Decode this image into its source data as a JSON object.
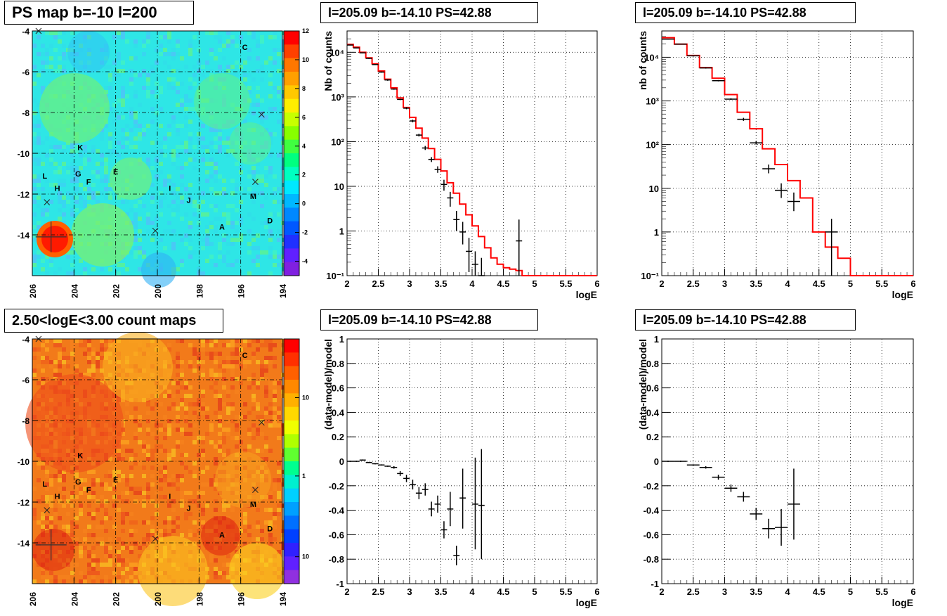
{
  "panels": {
    "ps_map": {
      "title": "PS map b=-10 l=200"
    },
    "count_map": {
      "title": "2.50<logE<3.00 count maps"
    },
    "spec_left": {
      "title": "l=205.09 b=-14.10 PS=42.88"
    },
    "spec_right": {
      "title": "l=205.09 b=-14.10 PS=42.88"
    },
    "res_left": {
      "title": "l=205.09 b=-14.10 PS=42.88"
    },
    "res_right": {
      "title": "l=205.09 b=-14.10 PS=42.88"
    }
  },
  "colors": {
    "data": "#000000",
    "model": "#ff0000",
    "grid": "#000000"
  },
  "chart_data": [
    {
      "id": "ps_map",
      "type": "heatmap",
      "title": "PS map b=-10 l=200",
      "xlabel": "",
      "ylabel": "",
      "xlim": [
        206,
        194
      ],
      "ylim": [
        -16,
        -4
      ],
      "x_ticks": [
        "206",
        "204",
        "202",
        "200",
        "198",
        "196",
        "194"
      ],
      "y_ticks": [
        "-4",
        "-6",
        "-8",
        "-10",
        "-12",
        "-14"
      ],
      "zlim": [
        -5,
        12
      ],
      "z_ticks": [
        "12",
        "10",
        "8",
        "6",
        "4",
        "2",
        "0",
        "-2",
        "-4"
      ],
      "grid": true,
      "sources": [
        {
          "label": "C",
          "l": 195.8,
          "b": -4.8
        },
        {
          "label": "K",
          "l": 203.7,
          "b": -9.7
        },
        {
          "label": "L",
          "l": 205.4,
          "b": -11.1
        },
        {
          "label": "G",
          "l": 203.8,
          "b": -11.0
        },
        {
          "label": "E",
          "l": 202.0,
          "b": -10.9
        },
        {
          "label": "H",
          "l": 204.8,
          "b": -11.7
        },
        {
          "label": "F",
          "l": 203.3,
          "b": -11.4
        },
        {
          "label": "I",
          "l": 199.4,
          "b": -11.7
        },
        {
          "label": "J",
          "l": 198.5,
          "b": -12.3
        },
        {
          "label": "M",
          "l": 195.4,
          "b": -12.1
        },
        {
          "label": "D",
          "l": 194.6,
          "b": -13.3
        },
        {
          "label": "A",
          "l": 196.9,
          "b": -13.6
        }
      ]
    },
    {
      "id": "count_map",
      "type": "heatmap",
      "title": "2.50<logE<3.00 count maps",
      "xlabel": "",
      "ylabel": "",
      "xlim": [
        206,
        194
      ],
      "ylim": [
        -16,
        -4
      ],
      "x_ticks": [
        "206",
        "204",
        "202",
        "200",
        "198",
        "196",
        "194"
      ],
      "y_ticks": [
        "-4",
        "-6",
        "-8",
        "-10",
        "-12",
        "-14"
      ],
      "z_scale": "log",
      "z_ticks": [
        "10",
        "1",
        "10⁻¹"
      ],
      "grid": true
    },
    {
      "id": "spec_left",
      "type": "line",
      "title": "l=205.09 b=-14.10 PS=42.88",
      "xlabel": "logE",
      "ylabel": "Nb of counts",
      "xlim": [
        2,
        6
      ],
      "ylim": [
        0.1,
        30000
      ],
      "y_scale": "log",
      "x_ticks": [
        "2",
        "2.5",
        "3",
        "3.5",
        "4",
        "4.5",
        "5",
        "5.5",
        "6"
      ],
      "y_ticks": [
        {
          "v": 0.1,
          "t": "10⁻¹"
        },
        {
          "v": 1,
          "t": "1"
        },
        {
          "v": 10,
          "t": "10"
        },
        {
          "v": 100,
          "t": "10²"
        },
        {
          "v": 1000,
          "t": "10³"
        },
        {
          "v": 10000,
          "t": "10⁴"
        }
      ],
      "grid": true,
      "series": [
        {
          "kind": "step",
          "edges": [
            2,
            2.1,
            2.2,
            2.3,
            2.4,
            2.5,
            2.6,
            2.7,
            2.8,
            2.9,
            3.0,
            3.1,
            3.2,
            3.3,
            3.4,
            3.5,
            3.6,
            3.7,
            3.8,
            3.9,
            4.0,
            4.1,
            4.2,
            4.3,
            4.4,
            4.5,
            4.6,
            4.7,
            4.8,
            4.9,
            5.0,
            5.1,
            5.2,
            5.3,
            5.4,
            5.5,
            5.6,
            5.7,
            5.8,
            5.9,
            6.0
          ],
          "values": [
            15000,
            13000,
            10000,
            7500,
            5500,
            3800,
            2500,
            1600,
            950,
            580,
            350,
            200,
            120,
            70,
            40,
            22,
            12,
            7,
            4,
            2.3,
            1.3,
            0.75,
            0.42,
            0.25,
            0.18,
            0.15,
            0.14,
            0.13,
            0.1,
            0.1,
            0.1,
            0.1,
            0.1,
            0.1,
            0.1,
            0.1,
            0.1,
            0.1,
            0.1,
            0.1
          ]
        },
        {
          "kind": "points",
          "x": [
            2.05,
            2.15,
            2.25,
            2.35,
            2.45,
            2.55,
            2.65,
            2.75,
            2.85,
            2.95,
            3.05,
            3.15,
            3.25,
            3.35,
            3.45,
            3.55,
            3.65,
            3.75,
            3.85,
            3.95,
            4.05,
            4.15,
            4.75
          ],
          "xerr": 0.05,
          "y": [
            14500,
            12500,
            9700,
            7300,
            5300,
            3600,
            2400,
            1500,
            880,
            560,
            290,
            140,
            72,
            40,
            24,
            11,
            5.5,
            1.8,
            0.95,
            0.35,
            0.18,
            0.1,
            0.6
          ],
          "ylo": [
            14300,
            12300,
            9500,
            7100,
            5200,
            3500,
            2300,
            1450,
            850,
            530,
            270,
            130,
            65,
            35,
            20,
            8,
            3.5,
            1.0,
            0.5,
            0.12,
            0.08,
            0.06,
            0.05
          ],
          "yhi": [
            14700,
            12700,
            9900,
            7500,
            5400,
            3700,
            2500,
            1550,
            910,
            590,
            310,
            150,
            80,
            45,
            28,
            14,
            7.5,
            2.8,
            1.6,
            0.7,
            0.35,
            0.25,
            1.8
          ]
        }
      ]
    },
    {
      "id": "spec_right",
      "type": "line",
      "title": "l=205.09 b=-14.10 PS=42.88",
      "xlabel": "logE",
      "ylabel": "nb of counts",
      "xlim": [
        2,
        6
      ],
      "ylim": [
        0.1,
        40000
      ],
      "y_scale": "log",
      "x_ticks": [
        "2",
        "2.5",
        "3",
        "3.5",
        "4",
        "4.5",
        "5",
        "5.5",
        "6"
      ],
      "y_ticks": [
        {
          "v": 0.1,
          "t": "10⁻¹"
        },
        {
          "v": 1,
          "t": "1"
        },
        {
          "v": 10,
          "t": "10"
        },
        {
          "v": 100,
          "t": "10²"
        },
        {
          "v": 1000,
          "t": "10³"
        },
        {
          "v": 10000,
          "t": "10⁴"
        }
      ],
      "grid": true,
      "series": [
        {
          "kind": "step",
          "edges": [
            2,
            2.2,
            2.4,
            2.6,
            2.8,
            3.0,
            3.2,
            3.4,
            3.6,
            3.8,
            4.0,
            4.2,
            4.4,
            4.6,
            4.8,
            5.0,
            5.2,
            5.4,
            5.6,
            5.8,
            6.0
          ],
          "values": [
            28000,
            20000,
            11000,
            5800,
            3300,
            1400,
            550,
            230,
            80,
            35,
            15,
            6,
            1,
            0.45,
            0.25,
            0.1,
            0.1,
            0.1,
            0.1,
            0.1
          ]
        },
        {
          "kind": "points",
          "x": [
            2.1,
            2.3,
            2.5,
            2.7,
            2.9,
            3.1,
            3.3,
            3.5,
            3.7,
            3.9,
            4.1,
            4.7
          ],
          "xerr": 0.1,
          "y": [
            26000,
            20000,
            10800,
            5700,
            2900,
            1100,
            380,
            110,
            28,
            9,
            5,
            1
          ],
          "ylo": [
            25500,
            19600,
            10600,
            5500,
            2800,
            1050,
            350,
            100,
            22,
            6,
            3,
            0.1
          ],
          "yhi": [
            26500,
            20400,
            11000,
            5900,
            3000,
            1150,
            410,
            120,
            35,
            13,
            8,
            2
          ]
        }
      ]
    },
    {
      "id": "res_left",
      "type": "scatter",
      "title": "l=205.09 b=-14.10 PS=42.88",
      "xlabel": "logE",
      "ylabel": "(data-model)/model",
      "xlim": [
        2,
        6
      ],
      "ylim": [
        -1,
        1
      ],
      "x_ticks": [
        "2",
        "2.5",
        "3",
        "3.5",
        "4",
        "4.5",
        "5",
        "5.5",
        "6"
      ],
      "y_ticks": [
        "-1",
        "-0.8",
        "-0.6",
        "-0.4",
        "-0.2",
        "0",
        "0.2",
        "0.4",
        "0.6",
        "0.8",
        "1"
      ],
      "grid": true,
      "series": [
        {
          "kind": "points",
          "x": [
            2.05,
            2.15,
            2.25,
            2.35,
            2.45,
            2.55,
            2.65,
            2.75,
            2.85,
            2.95,
            3.05,
            3.15,
            3.25,
            3.35,
            3.45,
            3.55,
            3.65,
            3.75,
            3.85,
            4.05,
            4.15
          ],
          "xerr": 0.05,
          "y": [
            0.0,
            0.0,
            0.01,
            -0.01,
            -0.02,
            -0.03,
            -0.04,
            -0.05,
            -0.1,
            -0.14,
            -0.19,
            -0.26,
            -0.23,
            -0.39,
            -0.35,
            -0.56,
            -0.39,
            -0.77,
            -0.3,
            -0.35,
            -0.36
          ],
          "ylo": [
            -0.005,
            -0.005,
            0.005,
            -0.015,
            -0.025,
            -0.035,
            -0.045,
            -0.06,
            -0.12,
            -0.17,
            -0.23,
            -0.31,
            -0.28,
            -0.45,
            -0.42,
            -0.63,
            -0.53,
            -0.85,
            -0.55,
            -0.72,
            -0.8
          ],
          "yhi": [
            0.005,
            0.005,
            0.015,
            -0.005,
            -0.015,
            -0.025,
            -0.035,
            -0.04,
            -0.08,
            -0.11,
            -0.15,
            -0.21,
            -0.18,
            -0.33,
            -0.28,
            -0.49,
            -0.25,
            -0.69,
            -0.06,
            0.03,
            0.1
          ]
        }
      ]
    },
    {
      "id": "res_right",
      "type": "scatter",
      "title": "l=205.09 b=-14.10 PS=42.88",
      "xlabel": "logE",
      "ylabel": "(data-model)/model",
      "xlim": [
        2,
        6
      ],
      "ylim": [
        -1,
        1
      ],
      "x_ticks": [
        "2",
        "2.5",
        "3",
        "3.5",
        "4",
        "4.5",
        "5",
        "5.5",
        "6"
      ],
      "y_ticks": [
        "-1",
        "-0.8",
        "-0.6",
        "-0.4",
        "-0.2",
        "0",
        "0.2",
        "0.4",
        "0.6",
        "0.8",
        "1"
      ],
      "grid": true,
      "series": [
        {
          "kind": "points",
          "x": [
            2.1,
            2.3,
            2.5,
            2.7,
            2.9,
            3.1,
            3.3,
            3.5,
            3.7,
            3.9,
            4.1
          ],
          "xerr": 0.1,
          "y": [
            0.0,
            0.0,
            -0.03,
            -0.05,
            -0.13,
            -0.22,
            -0.29,
            -0.43,
            -0.55,
            -0.54,
            -0.35
          ],
          "ylo": [
            -0.005,
            -0.005,
            -0.035,
            -0.06,
            -0.15,
            -0.25,
            -0.33,
            -0.48,
            -0.63,
            -0.69,
            -0.64
          ],
          "yhi": [
            0.005,
            0.005,
            -0.025,
            -0.04,
            -0.11,
            -0.19,
            -0.25,
            -0.38,
            -0.47,
            -0.39,
            -0.06
          ]
        }
      ]
    }
  ]
}
